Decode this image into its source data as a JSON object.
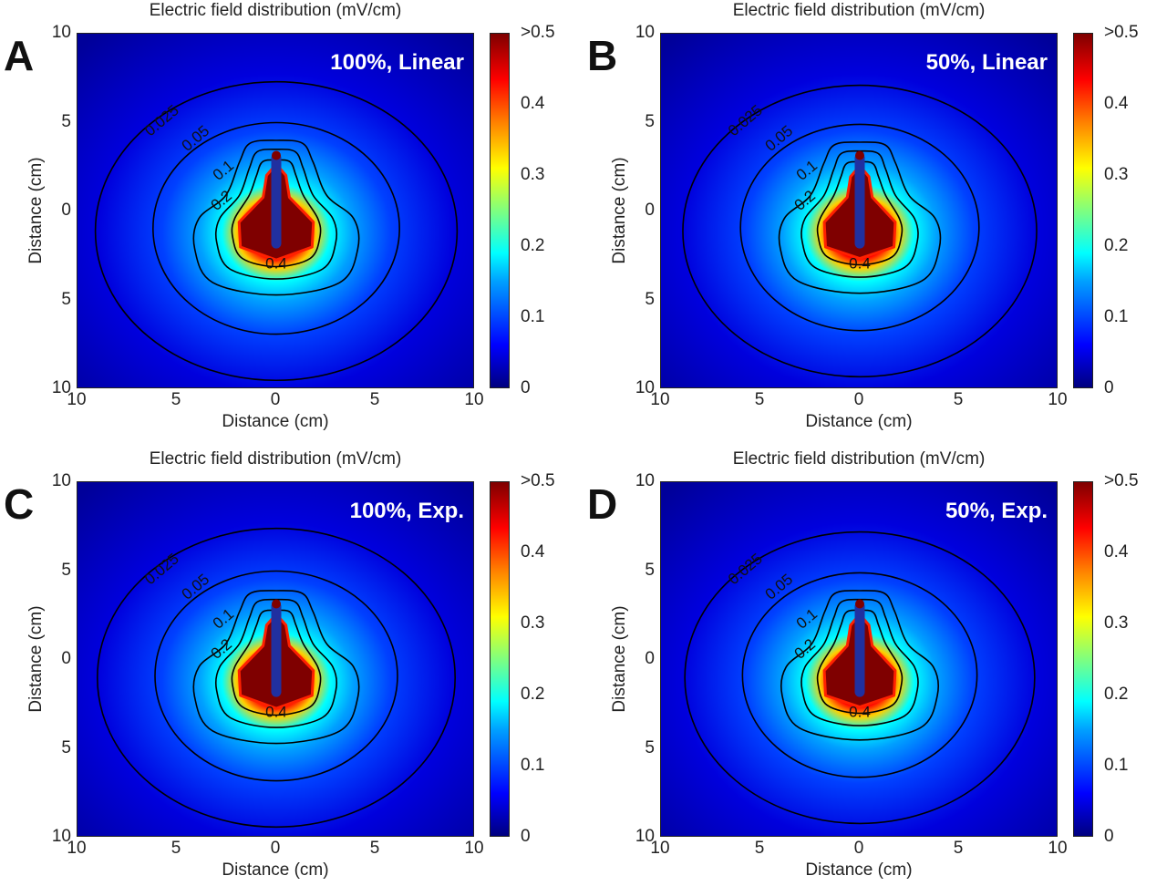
{
  "chart_data": [
    {
      "panel": "A",
      "type": "heatmap",
      "title": "Electric field distribution (mV/cm)",
      "annotation": "100%, Linear",
      "xlabel": "Distance (cm)",
      "ylabel": "Distance (cm)",
      "x_ticks": [
        "10",
        "5",
        "0",
        "5",
        "10"
      ],
      "y_ticks": [
        "10",
        "5",
        "0",
        "5",
        "10"
      ],
      "xlim": [
        -10,
        10
      ],
      "ylim": [
        -10,
        10
      ],
      "colorbar": {
        "range": [
          0,
          0.5
        ],
        "ticks": [
          ">0.5",
          "0.4",
          "0.3",
          "0.2",
          "0.1",
          "0"
        ]
      },
      "contours": [
        {
          "level": 0.025,
          "label": "0.025",
          "half_width": 9.1,
          "top": 7.3,
          "bottom": -9.5
        },
        {
          "level": 0.05,
          "label": "0.05",
          "half_width": 6.2,
          "top": 5.0,
          "bottom": -6.9
        },
        {
          "level": 0.1,
          "label": "0.1",
          "half_width": 4.1,
          "top": 4.0,
          "bottom": -4.7
        },
        {
          "level": 0.2,
          "label": "0.2",
          "half_width": 3.0,
          "top": 3.5,
          "bottom": -3.8
        },
        {
          "level": 0.4,
          "label": "0.4",
          "half_width": 2.2,
          "top": 2.9,
          "bottom": -3.1
        }
      ]
    },
    {
      "panel": "B",
      "type": "heatmap",
      "title": "Electric field distribution (mV/cm)",
      "annotation": "50%, Linear",
      "xlabel": "Distance (cm)",
      "ylabel": "Distance (cm)",
      "x_ticks": [
        "10",
        "5",
        "0",
        "5",
        "10"
      ],
      "y_ticks": [
        "10",
        "5",
        "0",
        "5",
        "10"
      ],
      "xlim": [
        -10,
        10
      ],
      "ylim": [
        -10,
        10
      ],
      "colorbar": {
        "range": [
          0,
          0.5
        ],
        "ticks": [
          ">0.5",
          "0.4",
          "0.3",
          "0.2",
          "0.1",
          "0"
        ]
      },
      "contours": [
        {
          "level": 0.025,
          "label": "0.025",
          "half_width": 8.9,
          "top": 7.1,
          "bottom": -9.3
        },
        {
          "level": 0.05,
          "label": "0.05",
          "half_width": 6.0,
          "top": 4.9,
          "bottom": -6.7
        },
        {
          "level": 0.1,
          "label": "0.1",
          "half_width": 4.0,
          "top": 3.9,
          "bottom": -4.6
        },
        {
          "level": 0.2,
          "label": "0.2",
          "half_width": 2.9,
          "top": 3.4,
          "bottom": -3.7
        },
        {
          "level": 0.4,
          "label": "0.4",
          "half_width": 2.1,
          "top": 2.8,
          "bottom": -3.0
        }
      ]
    },
    {
      "panel": "C",
      "type": "heatmap",
      "title": "Electric field distribution (mV/cm)",
      "annotation": "100%, Exp.",
      "xlabel": "Distance (cm)",
      "ylabel": "Distance (cm)",
      "x_ticks": [
        "10",
        "5",
        "0",
        "5",
        "10"
      ],
      "y_ticks": [
        "10",
        "5",
        "0",
        "5",
        "10"
      ],
      "xlim": [
        -10,
        10
      ],
      "ylim": [
        -10,
        10
      ],
      "colorbar": {
        "range": [
          0,
          0.5
        ],
        "ticks": [
          ">0.5",
          "0.4",
          "0.3",
          "0.2",
          "0.1",
          "0"
        ]
      },
      "contours": [
        {
          "level": 0.025,
          "label": "0.025",
          "half_width": 9.0,
          "top": 7.4,
          "bottom": -9.4
        },
        {
          "level": 0.05,
          "label": "0.05",
          "half_width": 6.1,
          "top": 5.0,
          "bottom": -6.8
        },
        {
          "level": 0.1,
          "label": "0.1",
          "half_width": 4.1,
          "top": 3.9,
          "bottom": -4.7
        },
        {
          "level": 0.2,
          "label": "0.2",
          "half_width": 3.0,
          "top": 3.4,
          "bottom": -3.8
        },
        {
          "level": 0.4,
          "label": "0.4",
          "half_width": 2.2,
          "top": 2.8,
          "bottom": -3.1
        }
      ]
    },
    {
      "panel": "D",
      "type": "heatmap",
      "title": "Electric field distribution (mV/cm)",
      "annotation": "50%, Exp.",
      "xlabel": "Distance (cm)",
      "ylabel": "Distance (cm)",
      "x_ticks": [
        "10",
        "5",
        "0",
        "5",
        "10"
      ],
      "y_ticks": [
        "10",
        "5",
        "0",
        "5",
        "10"
      ],
      "xlim": [
        -10,
        10
      ],
      "ylim": [
        -10,
        10
      ],
      "colorbar": {
        "range": [
          0,
          0.5
        ],
        "ticks": [
          ">0.5",
          "0.4",
          "0.3",
          "0.2",
          "0.1",
          "0"
        ]
      },
      "contours": [
        {
          "level": 0.025,
          "label": "0.025",
          "half_width": 8.8,
          "top": 7.2,
          "bottom": -9.2
        },
        {
          "level": 0.05,
          "label": "0.05",
          "half_width": 5.9,
          "top": 4.9,
          "bottom": -6.6
        },
        {
          "level": 0.1,
          "label": "0.1",
          "half_width": 3.9,
          "top": 3.9,
          "bottom": -4.5
        },
        {
          "level": 0.2,
          "label": "0.2",
          "half_width": 2.9,
          "top": 3.4,
          "bottom": -3.7
        },
        {
          "level": 0.4,
          "label": "0.4",
          "half_width": 2.1,
          "top": 2.8,
          "bottom": -3.0
        }
      ]
    }
  ]
}
